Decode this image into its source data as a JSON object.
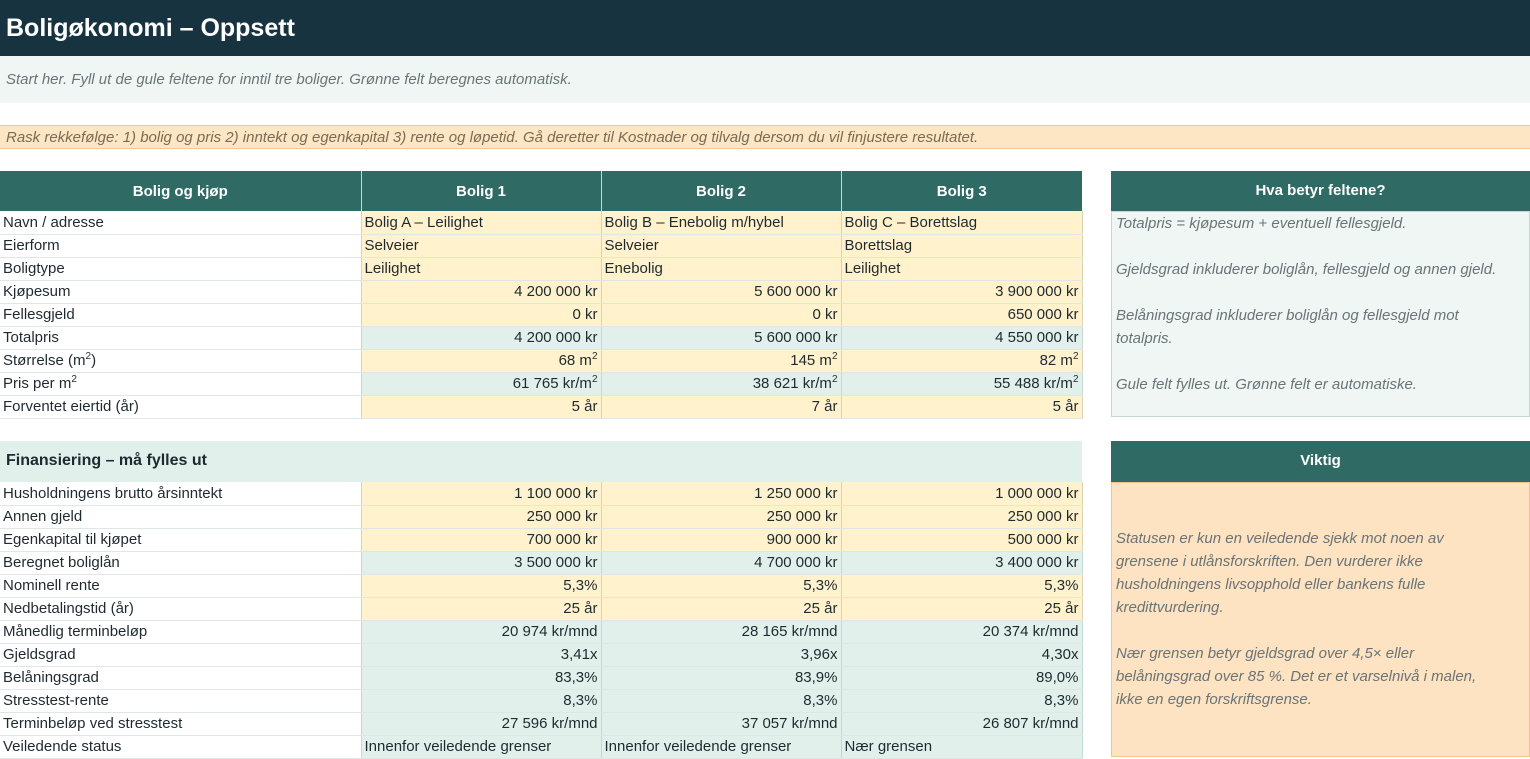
{
  "title": "Boligøkonomi – Oppsett",
  "intro": "Start her. Fyll ut de gule feltene for inntil tre boliger. Grønne felt beregnes automatisk.",
  "hint": "Rask rekkefølge: 1) bolig og pris  2) inntekt og egenkapital  3) rente og løpetid. Gå deretter til Kostnader og tilvalg dersom du vil finjustere resultatet.",
  "housing": {
    "headers": [
      "Bolig og kjøp",
      "Bolig 1",
      "Bolig 2",
      "Bolig 3"
    ],
    "rows": [
      {
        "label": "Navn / adresse",
        "values": [
          "Bolig A – Leilighet",
          "Bolig B – Enebolig m/hybel",
          "Bolig C – Borettslag"
        ]
      },
      {
        "label": "Eierform",
        "values": [
          "Selveier",
          "Selveier",
          "Borettslag"
        ]
      },
      {
        "label": "Boligtype",
        "values": [
          "Leilighet",
          "Enebolig",
          "Leilighet"
        ]
      },
      {
        "label": "Kjøpesum",
        "values": [
          "4 200 000 kr",
          "5 600 000 kr",
          "3 900 000 kr"
        ]
      },
      {
        "label": "Fellesgjeld",
        "values": [
          "0 kr",
          "0 kr",
          "650 000 kr"
        ]
      },
      {
        "label": "Totalpris",
        "values": [
          "4 200 000 kr",
          "5 600 000 kr",
          "4 550 000 kr"
        ]
      },
      {
        "label": "Størrelse (m",
        "sup": "2",
        "suffix": ")",
        "values": [
          "68 m",
          "145 m",
          "82 m"
        ],
        "valsup": "2"
      },
      {
        "label": "Pris per m",
        "sup": "2",
        "suffix": "",
        "values": [
          "61 765 kr/m",
          "38 621 kr/m",
          "55 488 kr/m"
        ],
        "valsup": "2"
      },
      {
        "label": "Forventet eiertid (år)",
        "values": [
          "5 år",
          "7 år",
          "5 år"
        ]
      }
    ]
  },
  "finance": {
    "title": "Finansiering – må fylles ut",
    "rows": [
      {
        "label": "Husholdningens brutto årsinntekt",
        "values": [
          "1 100 000 kr",
          "1 250 000 kr",
          "1 000 000 kr"
        ]
      },
      {
        "label": "Annen gjeld",
        "values": [
          "250 000 kr",
          "250 000 kr",
          "250 000 kr"
        ]
      },
      {
        "label": "Egenkapital til kjøpet",
        "values": [
          "700 000 kr",
          "900 000 kr",
          "500 000 kr"
        ]
      },
      {
        "label": "Beregnet boliglån",
        "values": [
          "3 500 000 kr",
          "4 700 000 kr",
          "3 400 000 kr"
        ]
      },
      {
        "label": "Nominell rente",
        "values": [
          "5,3%",
          "5,3%",
          "5,3%"
        ]
      },
      {
        "label": "Nedbetalingstid (år)",
        "values": [
          "25 år",
          "25 år",
          "25 år"
        ]
      },
      {
        "label": "Månedlig terminbeløp",
        "values": [
          "20 974 kr/mnd",
          "28 165 kr/mnd",
          "20 374 kr/mnd"
        ]
      },
      {
        "label": "Gjeldsgrad",
        "values": [
          "3,41x",
          "3,96x",
          "4,30x"
        ]
      },
      {
        "label": "Belåningsgrad",
        "values": [
          "83,3%",
          "83,9%",
          "89,0%"
        ]
      },
      {
        "label": "Stresstest-rente",
        "values": [
          "8,3%",
          "8,3%",
          "8,3%"
        ]
      },
      {
        "label": "Terminbeløp ved stresstest",
        "values": [
          "27 596 kr/mnd",
          "37 057 kr/mnd",
          "26 807 kr/mnd"
        ]
      },
      {
        "label": "Veiledende status",
        "values": [
          "Innenfor veiledende grenser",
          "Innenfor veiledende grenser",
          "Nær grensen"
        ]
      }
    ]
  },
  "info_panel": {
    "title": "Hva betyr feltene?",
    "lines": [
      "Totalpris = kjøpesum + eventuell fellesgjeld.",
      "Gjeldsgrad inkluderer boliglån, fellesgjeld og annen gjeld.",
      "Belåningsgrad inkluderer boliglån og fellesgjeld mot",
      "totalpris.",
      "Gule felt fylles ut. Grønne felt er automatiske."
    ]
  },
  "warn_panel": {
    "title": "Viktig",
    "lines": [
      "Statusen er kun en veiledende sjekk mot noen av",
      "grensene i utlånsforskriften. Den vurderer ikke",
      "husholdningens livsopphold eller bankens fulle",
      "kredittvurdering.",
      "Nær grensen betyr gjeldsgrad over 4,5× eller",
      "belåningsgrad over 85 %. Det er et varselnivå i malen,",
      "ikke en egen forskriftsgrense."
    ]
  },
  "colors": {
    "title_bg": "#17333f",
    "header_bg": "#2f6b64",
    "input_bg": "#fff2cc",
    "calc_bg": "#e2f0ec",
    "warn_bg": "#fde3c1"
  }
}
